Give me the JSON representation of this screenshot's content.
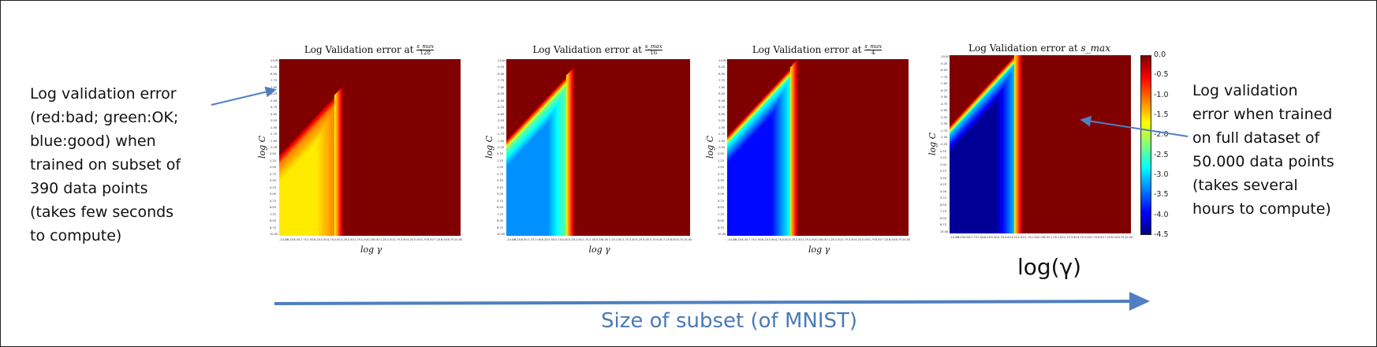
{
  "chart_data": [
    {
      "type": "heatmap",
      "title": "Log Validation error at s_max/128",
      "title_prefix": "Log Validation error at",
      "title_math": {
        "num": "s_max",
        "den": "128"
      },
      "xlabel": "log γ",
      "ylabel": "log C",
      "peak_y": -4.9,
      "cliff_x": -3.9,
      "floor": -1.6
    },
    {
      "type": "heatmap",
      "title": "Log Validation error at s_max/16",
      "title_prefix": "Log Validation error at",
      "title_math": {
        "num": "s_max",
        "den": "16"
      },
      "xlabel": "log γ",
      "ylabel": "log C",
      "peak_y": -7.1,
      "cliff_x": -3.5,
      "floor": -3.3
    },
    {
      "type": "heatmap",
      "title": "Log Validation error at s_max/4",
      "title_prefix": "Log Validation error at",
      "title_math": {
        "num": "s_max",
        "den": "4"
      },
      "xlabel": "log γ",
      "ylabel": "log C",
      "peak_y": -8.0,
      "cliff_x": -3.1,
      "floor": -3.9
    },
    {
      "type": "heatmap",
      "title": "Log Validation error at s_max",
      "title_prefix": "Log Validation error at",
      "title_math": {
        "num": "s_max",
        "den": ""
      },
      "xlabel": "",
      "ylabel": "log C",
      "peak_y": -9.0,
      "cliff_x": -2.9,
      "floor": -4.4
    }
  ],
  "axes": {
    "x_ticks": [
      "-10.00",
      "-9.25",
      "-8.50",
      "-7.75",
      "-7.00",
      "-6.25",
      "-5.50",
      "-4.75",
      "-4.00",
      "-3.25",
      "-2.50",
      "-1.75",
      "-1.00",
      "-0.25",
      "0.50",
      "1.25",
      "2.00",
      "2.75",
      "3.50",
      "4.25",
      "5.00",
      "5.75",
      "6.50",
      "7.25",
      "8.00",
      "8.75",
      "10.00"
    ],
    "y_ticks": [
      "-10.00",
      "-9.25",
      "-8.50",
      "-7.75",
      "-7.00",
      "-6.25",
      "-5.50",
      "-4.75",
      "-4.00",
      "-3.25",
      "-2.50",
      "-1.75",
      "-1.00",
      "-0.25",
      "0.50",
      "1.25",
      "2.00",
      "2.75",
      "3.50",
      "4.25",
      "5.00",
      "5.75",
      "6.50",
      "7.25",
      "8.00",
      "8.75",
      "10.00"
    ],
    "x_range": [
      -10,
      10
    ],
    "y_range": [
      -10,
      10
    ]
  },
  "colorbar": {
    "ticks": [
      "0.0",
      "-0.5",
      "-1.0",
      "-1.5",
      "-2.0",
      "-2.5",
      "-3.0",
      "-3.5",
      "-4.0",
      "-4.5"
    ],
    "range": [
      -4.5,
      0.0
    ],
    "colormap": "jet"
  },
  "annotations": {
    "left_note": "Log validation error\n(red:bad; green:OK;\nblue:good) when\ntrained on subset of\n390 data points\n(takes few seconds\nto compute)",
    "right_note": "Log validation\nerror when trained\non full dataset of\n50.000 data points\n(takes several\nhours to compute)",
    "big_xlabel": "log(γ)",
    "subset_label": "Size of subset (of MNIST)"
  },
  "colors": {
    "arrow": "#4f7fc0",
    "subset_text": "#4a7ab8",
    "bad": "#9b0000"
  }
}
